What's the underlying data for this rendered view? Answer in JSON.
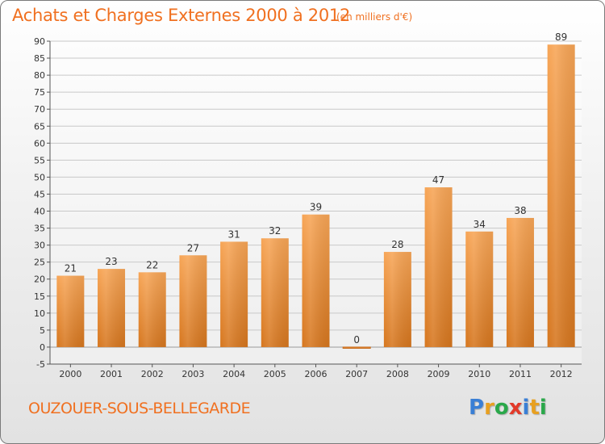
{
  "title": "Achats et Charges Externes 2000 à 2012",
  "subtitle": "(en milliers d'€)",
  "commune": "OUZOUER-SOUS-BELLEGARDE",
  "brand": {
    "letters": [
      "P",
      "r",
      "o",
      "x",
      "i",
      "t",
      "i"
    ],
    "colors": [
      "#3a7fd5",
      "#e8a020",
      "#2aa84a",
      "#e23a2a",
      "#3a7fd5",
      "#e8a020",
      "#2aa84a"
    ]
  },
  "chart_data": {
    "type": "bar",
    "categories": [
      "2000",
      "2001",
      "2002",
      "2003",
      "2004",
      "2005",
      "2006",
      "2007",
      "2008",
      "2009",
      "2010",
      "2011",
      "2012"
    ],
    "values": [
      21,
      23,
      22,
      27,
      31,
      32,
      39,
      0,
      28,
      47,
      34,
      38,
      89
    ],
    "data_labels": [
      "21",
      "23",
      "22",
      "27",
      "31",
      "32",
      "39",
      "0",
      "28",
      "47",
      "34",
      "38",
      "89"
    ],
    "title": "Achats et Charges Externes 2000 à 2012",
    "subtitle": "(en milliers d'€)",
    "ylim": [
      -5,
      90
    ],
    "yticks": [
      -5,
      0,
      5,
      10,
      15,
      20,
      25,
      30,
      35,
      40,
      45,
      50,
      55,
      60,
      65,
      70,
      75,
      80,
      85,
      90
    ],
    "grid": true,
    "bar_color_top": "#f7a556",
    "bar_color_bottom": "#d6761e"
  }
}
